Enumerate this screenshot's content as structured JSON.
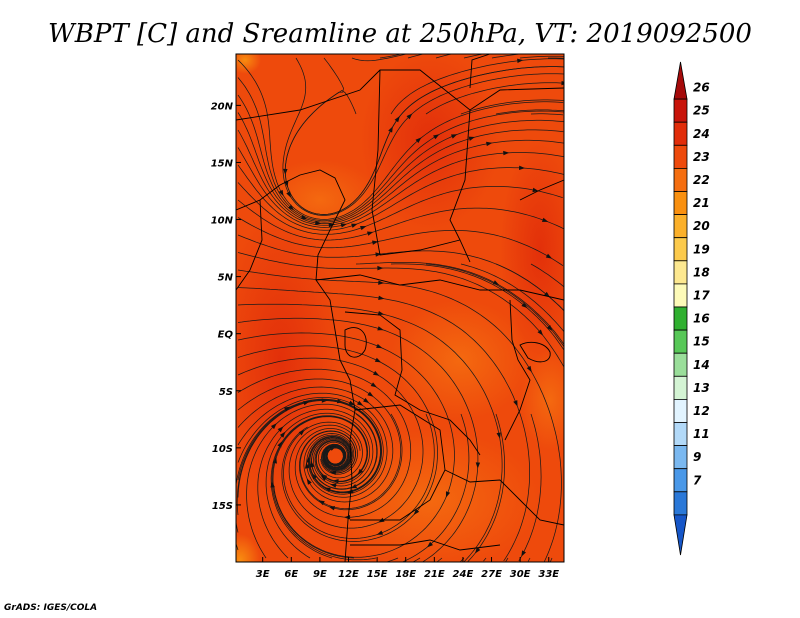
{
  "chart_data": {
    "type": "heatmap",
    "title": "WBPT [C] and Sreamline at 250hPa, VT: 2019092500",
    "variable": "WBPT",
    "units": "C",
    "overlay": "streamline",
    "level": "250hPa",
    "valid_time": "2019092500",
    "x_ticks": [
      "3E",
      "6E",
      "9E",
      "12E",
      "15E",
      "18E",
      "21E",
      "24E",
      "27E",
      "30E",
      "33E"
    ],
    "x_tick_values": [
      3,
      6,
      9,
      12,
      15,
      18,
      21,
      24,
      27,
      30,
      33
    ],
    "y_ticks": [
      "20N",
      "15N",
      "10N",
      "5N",
      "EQ",
      "5S",
      "10S",
      "15S"
    ],
    "y_tick_values": [
      20,
      15,
      10,
      5,
      0,
      -5,
      -10,
      -15
    ],
    "xlim": [
      0.2,
      34.6
    ],
    "ylim": [
      -20,
      24.5
    ],
    "dominant_range": [
      22,
      24
    ],
    "colorbar": {
      "orientation": "vertical",
      "labels": [
        "26",
        "25",
        "24",
        "23",
        "22",
        "21",
        "20",
        "19",
        "18",
        "17",
        "16",
        "15",
        "14",
        "13",
        "12",
        "11",
        "9",
        "7"
      ],
      "colors": [
        "#a50a0a",
        "#c8140a",
        "#e12d0a",
        "#ee4a0c",
        "#f56e10",
        "#f99010",
        "#fbb02a",
        "#fcca4c",
        "#fde890",
        "#fdfab8",
        "#30b030",
        "#58c858",
        "#9ade9a",
        "#d4f4d4",
        "#e2f4ff",
        "#b2d9f8",
        "#7ab8f0",
        "#4a98e8",
        "#2a78d8",
        "#1656c8"
      ]
    }
  },
  "credit": "GrADS: IGES/COLA"
}
